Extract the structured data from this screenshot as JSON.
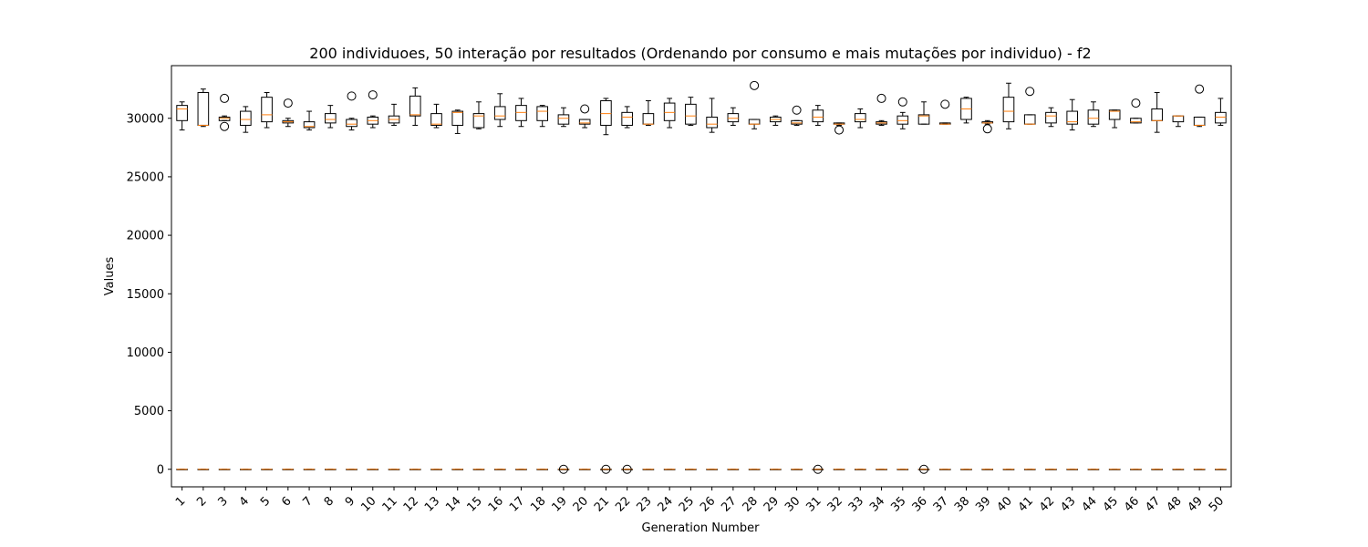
{
  "chart_data": {
    "type": "box",
    "title": "200 individuoes, 50 interação por resultados (Ordenando por consumo e mais mutações por individuo) - f2",
    "xlabel": "Generation Number",
    "ylabel": "Values",
    "ylim": [
      -1500,
      34500
    ],
    "yticks": [
      0,
      5000,
      10000,
      15000,
      20000,
      25000,
      30000
    ],
    "categories": [
      "1",
      "2",
      "3",
      "4",
      "5",
      "6",
      "7",
      "8",
      "9",
      "10",
      "11",
      "12",
      "13",
      "14",
      "15",
      "16",
      "17",
      "18",
      "19",
      "20",
      "21",
      "22",
      "23",
      "24",
      "25",
      "26",
      "27",
      "28",
      "29",
      "30",
      "31",
      "32",
      "33",
      "34",
      "35",
      "36",
      "37",
      "38",
      "39",
      "40",
      "41",
      "42",
      "43",
      "44",
      "45",
      "46",
      "47",
      "48",
      "49",
      "50"
    ],
    "colors": {
      "box": "#000000",
      "median": "#ff7f0e",
      "flier": "#000000"
    },
    "upper_boxes": [
      {
        "whislo": 29000,
        "q1": 29800,
        "med": 30800,
        "q3": 31100,
        "whishi": 31400,
        "fliers": []
      },
      {
        "whislo": 29300,
        "q1": 29400,
        "med": 29400,
        "q3": 32200,
        "whishi": 32500,
        "fliers": []
      },
      {
        "whislo": 29800,
        "q1": 29800,
        "med": 30000,
        "q3": 30100,
        "whishi": 30200,
        "fliers": [
          29300,
          31700
        ]
      },
      {
        "whislo": 28800,
        "q1": 29400,
        "med": 29900,
        "q3": 30600,
        "whishi": 31000,
        "fliers": []
      },
      {
        "whislo": 29200,
        "q1": 29700,
        "med": 30300,
        "q3": 31800,
        "whishi": 32200,
        "fliers": []
      },
      {
        "whislo": 29300,
        "q1": 29600,
        "med": 29700,
        "q3": 29800,
        "whishi": 30000,
        "fliers": [
          31300
        ]
      },
      {
        "whislo": 29000,
        "q1": 29200,
        "med": 29300,
        "q3": 29700,
        "whishi": 30600,
        "fliers": []
      },
      {
        "whislo": 29200,
        "q1": 29600,
        "med": 29900,
        "q3": 30400,
        "whishi": 31100,
        "fliers": []
      },
      {
        "whislo": 29000,
        "q1": 29300,
        "med": 29500,
        "q3": 29900,
        "whishi": 30000,
        "fliers": [
          31900
        ]
      },
      {
        "whislo": 29200,
        "q1": 29500,
        "med": 29800,
        "q3": 30100,
        "whishi": 30200,
        "fliers": [
          32000
        ]
      },
      {
        "whislo": 29400,
        "q1": 29600,
        "med": 29900,
        "q3": 30200,
        "whishi": 31200,
        "fliers": []
      },
      {
        "whislo": 29400,
        "q1": 30200,
        "med": 30300,
        "q3": 31900,
        "whishi": 32600,
        "fliers": []
      },
      {
        "whislo": 29200,
        "q1": 29400,
        "med": 29500,
        "q3": 30400,
        "whishi": 31200,
        "fliers": []
      },
      {
        "whislo": 28700,
        "q1": 29400,
        "med": 30500,
        "q3": 30600,
        "whishi": 30700,
        "fliers": []
      },
      {
        "whislo": 29100,
        "q1": 29200,
        "med": 30200,
        "q3": 30400,
        "whishi": 31400,
        "fliers": []
      },
      {
        "whislo": 29300,
        "q1": 29900,
        "med": 30200,
        "q3": 31000,
        "whishi": 32100,
        "fliers": []
      },
      {
        "whislo": 29300,
        "q1": 29800,
        "med": 30500,
        "q3": 31100,
        "whishi": 31700,
        "fliers": []
      },
      {
        "whislo": 29300,
        "q1": 29800,
        "med": 30600,
        "q3": 31000,
        "whishi": 31100,
        "fliers": []
      },
      {
        "whislo": 29300,
        "q1": 29500,
        "med": 30000,
        "q3": 30300,
        "whishi": 30900,
        "fliers": []
      },
      {
        "whislo": 29200,
        "q1": 29500,
        "med": 29600,
        "q3": 29900,
        "whishi": 29900,
        "fliers": [
          30800
        ]
      },
      {
        "whislo": 28600,
        "q1": 29400,
        "med": 30400,
        "q3": 31500,
        "whishi": 31700,
        "fliers": []
      },
      {
        "whislo": 29200,
        "q1": 29400,
        "med": 30100,
        "q3": 30500,
        "whishi": 31000,
        "fliers": []
      },
      {
        "whislo": 29400,
        "q1": 29500,
        "med": 29500,
        "q3": 30400,
        "whishi": 31500,
        "fliers": []
      },
      {
        "whislo": 29200,
        "q1": 29800,
        "med": 30500,
        "q3": 31300,
        "whishi": 31700,
        "fliers": []
      },
      {
        "whislo": 29400,
        "q1": 29500,
        "med": 30200,
        "q3": 31200,
        "whishi": 31800,
        "fliers": []
      },
      {
        "whislo": 28800,
        "q1": 29200,
        "med": 29500,
        "q3": 30100,
        "whishi": 31700,
        "fliers": []
      },
      {
        "whislo": 29400,
        "q1": 29700,
        "med": 30000,
        "q3": 30400,
        "whishi": 30900,
        "fliers": []
      },
      {
        "whislo": 29100,
        "q1": 29500,
        "med": 29500,
        "q3": 29900,
        "whishi": 29900,
        "fliers": [
          32800
        ]
      },
      {
        "whislo": 29400,
        "q1": 29700,
        "med": 29900,
        "q3": 30100,
        "whishi": 30200,
        "fliers": []
      },
      {
        "whislo": 29400,
        "q1": 29500,
        "med": 29600,
        "q3": 29800,
        "whishi": 29800,
        "fliers": [
          30700
        ]
      },
      {
        "whislo": 29400,
        "q1": 29700,
        "med": 30100,
        "q3": 30700,
        "whishi": 31100,
        "fliers": []
      },
      {
        "whislo": 29400,
        "q1": 29500,
        "med": 29500,
        "q3": 29600,
        "whishi": 29600,
        "fliers": [
          29000
        ]
      },
      {
        "whislo": 29200,
        "q1": 29700,
        "med": 29900,
        "q3": 30400,
        "whishi": 30800,
        "fliers": []
      },
      {
        "whislo": 29400,
        "q1": 29500,
        "med": 29600,
        "q3": 29700,
        "whishi": 29800,
        "fliers": [
          31700
        ]
      },
      {
        "whislo": 29100,
        "q1": 29500,
        "med": 29800,
        "q3": 30200,
        "whishi": 30500,
        "fliers": [
          31400
        ]
      },
      {
        "whislo": 29500,
        "q1": 29500,
        "med": 30200,
        "q3": 30300,
        "whishi": 31400,
        "fliers": []
      },
      {
        "whislo": 29500,
        "q1": 29500,
        "med": 29500,
        "q3": 29600,
        "whishi": 29600,
        "fliers": [
          31200
        ]
      },
      {
        "whislo": 29600,
        "q1": 29900,
        "med": 30800,
        "q3": 31700,
        "whishi": 31800,
        "fliers": []
      },
      {
        "whislo": 29500,
        "q1": 29600,
        "med": 29600,
        "q3": 29700,
        "whishi": 29800,
        "fliers": [
          29100
        ]
      },
      {
        "whislo": 29100,
        "q1": 29700,
        "med": 30600,
        "q3": 31800,
        "whishi": 33000,
        "fliers": []
      },
      {
        "whislo": 29500,
        "q1": 29500,
        "med": 29500,
        "q3": 30300,
        "whishi": 30300,
        "fliers": [
          32300
        ]
      },
      {
        "whislo": 29300,
        "q1": 29600,
        "med": 30200,
        "q3": 30500,
        "whishi": 30900,
        "fliers": []
      },
      {
        "whislo": 29000,
        "q1": 29500,
        "med": 29700,
        "q3": 30600,
        "whishi": 31600,
        "fliers": []
      },
      {
        "whislo": 29300,
        "q1": 29500,
        "med": 30000,
        "q3": 30700,
        "whishi": 31400,
        "fliers": []
      },
      {
        "whislo": 29200,
        "q1": 29900,
        "med": 30600,
        "q3": 30700,
        "whishi": 30700,
        "fliers": []
      },
      {
        "whislo": 29600,
        "q1": 29600,
        "med": 29700,
        "q3": 30000,
        "whishi": 30000,
        "fliers": [
          31300
        ]
      },
      {
        "whislo": 28800,
        "q1": 29800,
        "med": 29800,
        "q3": 30800,
        "whishi": 32200,
        "fliers": []
      },
      {
        "whislo": 29300,
        "q1": 29700,
        "med": 30200,
        "q3": 30200,
        "whishi": 30200,
        "fliers": []
      },
      {
        "whislo": 29300,
        "q1": 29400,
        "med": 29400,
        "q3": 30100,
        "whishi": 30100,
        "fliers": [
          32500
        ]
      },
      {
        "whislo": 29400,
        "q1": 29600,
        "med": 30100,
        "q3": 30500,
        "whishi": 31700,
        "fliers": []
      }
    ],
    "lower_boxes": {
      "value": 0,
      "fliers_at_categories": [
        "19",
        "21",
        "22",
        "31",
        "36"
      ]
    }
  }
}
